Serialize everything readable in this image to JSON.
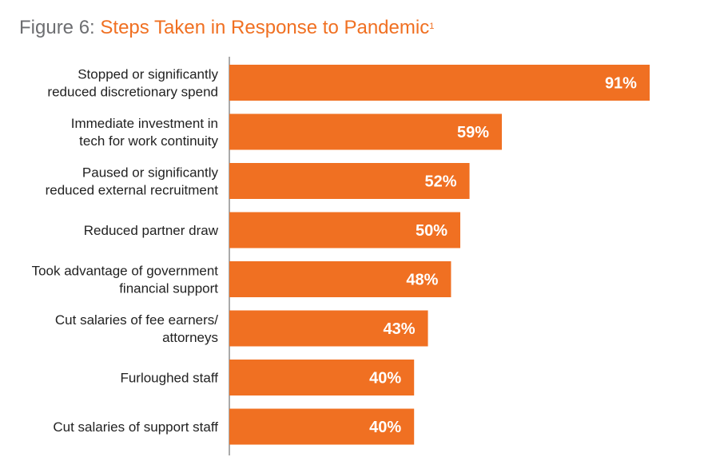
{
  "title": {
    "prefix": "Figure 6: ",
    "main": "Steps Taken in Response to Pandemic",
    "footnote": "1"
  },
  "colors": {
    "bar": "#f07022",
    "title_accent": "#f07022",
    "title_prefix": "#6d6e71",
    "axis": "#555555"
  },
  "chart_data": {
    "type": "bar",
    "orientation": "horizontal",
    "categories": [
      [
        "Stopped or significantly",
        "reduced discretionary spend"
      ],
      [
        "Immediate investment in",
        "tech for work continuity"
      ],
      [
        "Paused or significantly",
        "reduced external recruitment"
      ],
      [
        "Reduced partner draw"
      ],
      [
        "Took advantage of government",
        "financial support"
      ],
      [
        "Cut salaries of fee earners/",
        "attorneys"
      ],
      [
        "Furloughed staff"
      ],
      [
        "Cut salaries of support staff"
      ]
    ],
    "values": [
      91,
      59,
      52,
      50,
      48,
      43,
      40,
      40
    ],
    "value_labels": [
      "91%",
      "59%",
      "52%",
      "50%",
      "48%",
      "43%",
      "40%",
      "40%"
    ],
    "unit": "%",
    "xlim": [
      0,
      100
    ],
    "grid": false,
    "legend": "none"
  }
}
